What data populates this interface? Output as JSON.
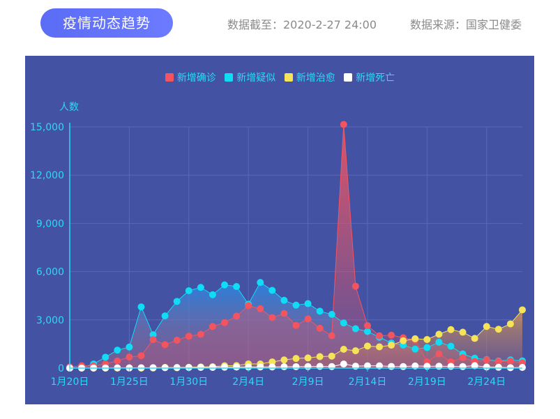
{
  "header": {
    "title": "疫情动态趋势",
    "date_label": "数据截至：2020-2-27 24:00",
    "source_label": "数据来源：国家卫健委"
  },
  "colors": {
    "panel": "#4452a3",
    "confirmed": "#f25560",
    "suspected": "#11dcf5",
    "cured": "#f5e35a",
    "death": "#ffffff",
    "axis_text": "#2fd8f5"
  },
  "chart_data": {
    "type": "line",
    "title": "疫情动态趋势",
    "ylabel": "人数",
    "xlabel": "",
    "ylim": [
      0,
      15000
    ],
    "yticks": [
      0,
      3000,
      6000,
      9000,
      12000,
      15000
    ],
    "ytick_labels": [
      "0",
      "3,000",
      "6,000",
      "9,000",
      "12,000",
      "15,000"
    ],
    "x_tick_labels": [
      "1月20日",
      "1月25日",
      "1月30日",
      "2月4日",
      "2月9日",
      "2月14日",
      "2月19日",
      "2月24日"
    ],
    "x_tick_indices": [
      0,
      5,
      10,
      15,
      20,
      25,
      30,
      35
    ],
    "grid": true,
    "legend_position": "top-center",
    "categories": [
      "1月20日",
      "1月21日",
      "1月22日",
      "1月23日",
      "1月24日",
      "1月25日",
      "1月26日",
      "1月27日",
      "1月28日",
      "1月29日",
      "1月30日",
      "1月31日",
      "2月1日",
      "2月2日",
      "2月3日",
      "2月4日",
      "2月5日",
      "2月6日",
      "2月7日",
      "2月8日",
      "2月9日",
      "2月10日",
      "2月11日",
      "2月12日",
      "2月13日",
      "2月14日",
      "2月15日",
      "2月16日",
      "2月17日",
      "2月18日",
      "2月19日",
      "2月20日",
      "2月21日",
      "2月22日",
      "2月23日",
      "2月24日",
      "2月25日",
      "2月26日",
      "2月27日"
    ],
    "series": [
      {
        "name": "新增确诊",
        "color": "#f25560",
        "values": [
          77,
          149,
          131,
          259,
          444,
          688,
          769,
          1771,
          1459,
          1737,
          1982,
          2102,
          2590,
          2829,
          3235,
          3887,
          3694,
          3143,
          3399,
          2656,
          3062,
          2478,
          2015,
          15152,
          5090,
          2641,
          2009,
          2048,
          1886,
          1749,
          394,
          889,
          397,
          648,
          409,
          508,
          406,
          433,
          327
        ]
      },
      {
        "name": "新增疑似",
        "color": "#11dcf5",
        "values": [
          27,
          26,
          257,
          680,
          1118,
          1309,
          3806,
          2077,
          3248,
          4148,
          4812,
          5019,
          4562,
          5173,
          5072,
          3971,
          5328,
          4833,
          4214,
          3916,
          4008,
          3536,
          3342,
          2807,
          2450,
          2277,
          1918,
          1563,
          1432,
          1185,
          1277,
          1614,
          1361,
          882,
          620,
          530,
          439,
          508,
          452
        ]
      },
      {
        "name": "新增治愈",
        "color": "#f5e35a",
        "values": [
          0,
          0,
          0,
          6,
          3,
          11,
          2,
          9,
          43,
          21,
          47,
          72,
          85,
          147,
          157,
          262,
          261,
          387,
          510,
          600,
          632,
          716,
          744,
          1171,
          1081,
          1373,
          1323,
          1425,
          1701,
          1824,
          1779,
          2109,
          2394,
          2231,
          1846,
          2589,
          2419,
          2750,
          3622
        ]
      },
      {
        "name": "新增死亡",
        "color": "#ffffff",
        "values": [
          0,
          3,
          8,
          8,
          16,
          15,
          24,
          26,
          26,
          38,
          43,
          46,
          45,
          57,
          64,
          65,
          73,
          73,
          86,
          89,
          97,
          108,
          97,
          254,
          121,
          143,
          142,
          105,
          98,
          136,
          114,
          118,
          109,
          97,
          150,
          71,
          52,
          29,
          44
        ]
      }
    ]
  }
}
